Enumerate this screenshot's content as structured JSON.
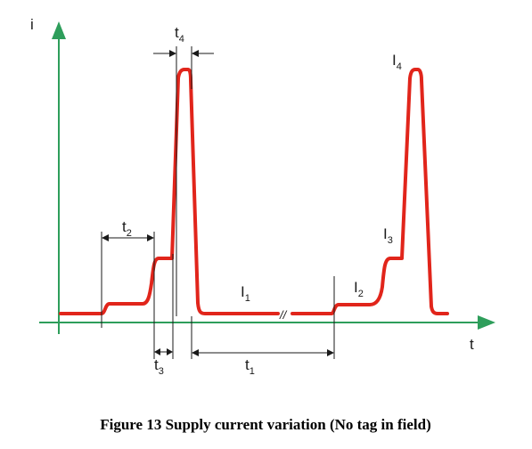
{
  "caption": "Figure 13 Supply current variation (No tag in field)",
  "axes": {
    "y_label": "i",
    "x_label": "t"
  },
  "labels": {
    "I1": {
      "main": "I",
      "sub": "1"
    },
    "I2": {
      "main": "I",
      "sub": "2"
    },
    "I3": {
      "main": "I",
      "sub": "3"
    },
    "I4": {
      "main": "I",
      "sub": "4"
    },
    "t1": {
      "main": "t",
      "sub": "1"
    },
    "t2": {
      "main": "t",
      "sub": "2"
    },
    "t3": {
      "main": "t",
      "sub": "3"
    },
    "t4": {
      "main": "t",
      "sub": "4"
    }
  },
  "break_mark": "//",
  "colors": {
    "axis": "#2e9e5b",
    "signal": "#e1251b",
    "annotation": "#1a1a1a"
  }
}
